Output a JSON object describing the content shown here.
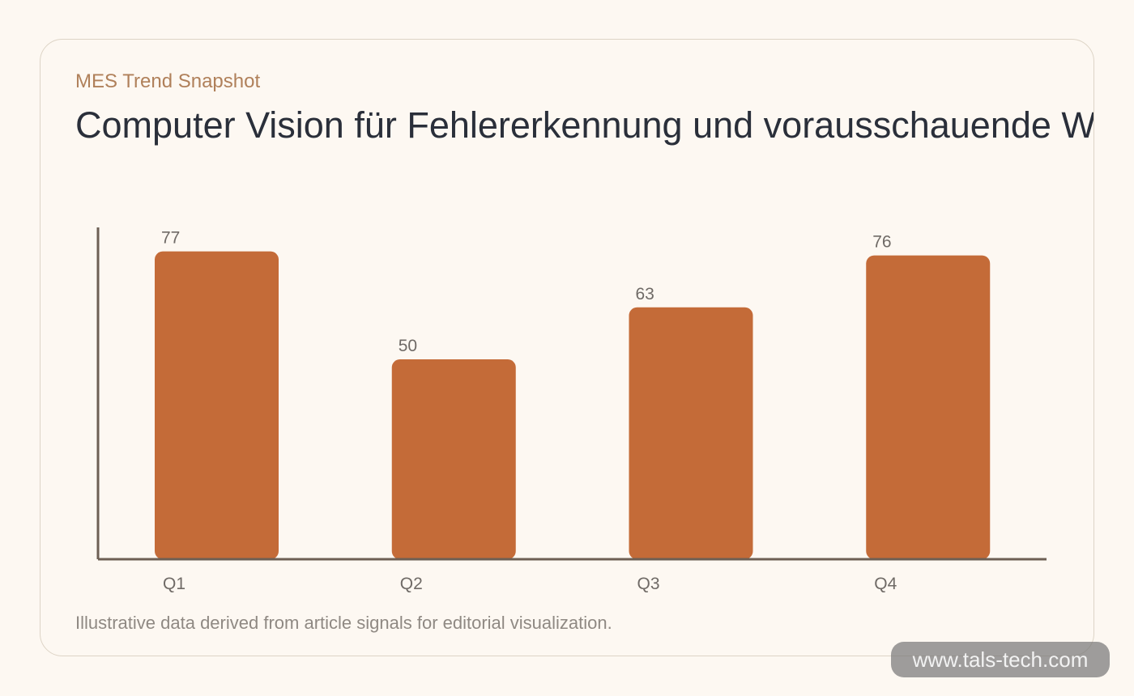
{
  "header": {
    "eyebrow": "MES Trend Snapshot",
    "title": "Computer Vision für Fehlererkennung und vorausschauende Wartung"
  },
  "chart_data": {
    "type": "bar",
    "categories": [
      "Q1",
      "Q2",
      "Q3",
      "Q4"
    ],
    "values": [
      77,
      50,
      63,
      76
    ],
    "title": "Computer Vision für Fehlererkennung und vorausschauende Wartung",
    "xlabel": "",
    "ylabel": "",
    "ylim": [
      0,
      83
    ],
    "grid": false,
    "legend": "none",
    "bar_color": "#c46b38",
    "axis_color": "#6d5f54",
    "show_value_labels": true
  },
  "footer": {
    "note": "Illustrative data derived from article signals for editorial visualization."
  },
  "watermark": {
    "text": "www.tals-tech.com"
  },
  "colors": {
    "background": "#fdf8f2",
    "accent": "#c46b38",
    "eyebrow": "#b0805a",
    "title": "#2a2f3a"
  }
}
